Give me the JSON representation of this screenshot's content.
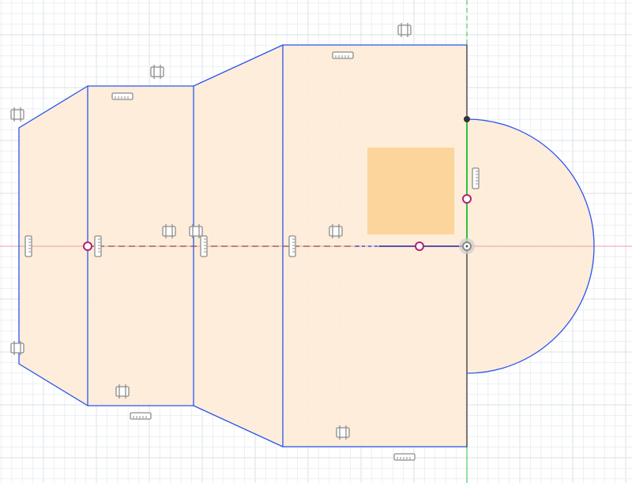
{
  "view": {
    "background": "#ffffff",
    "colors": {
      "grid_minor": "#eceff2",
      "grid_major": "#dbe0e5",
      "profile_fill": "#fdebd7",
      "selected_fill": "#fcd49a",
      "sketch_line": "#2a55ee",
      "axis_x": "#e9a0a0",
      "axis_y": "#2fbf3f",
      "construction_line": "#8a4848",
      "constraint_point": "#b0226e",
      "origin_point": "#888888",
      "constraint_glyph": "#8d8d8d"
    }
  },
  "sketch": {
    "profile_count": 5,
    "selected_profile": "rectangle-inner",
    "constraints": {
      "parallel_symbol_name": "parallel-constraint-icon",
      "horizontal_vertical_symbol_name": "horizontal-constraint-icon",
      "coincident_point_name": "coincident-point-icon",
      "origin_point_name": "origin-point-icon"
    }
  }
}
